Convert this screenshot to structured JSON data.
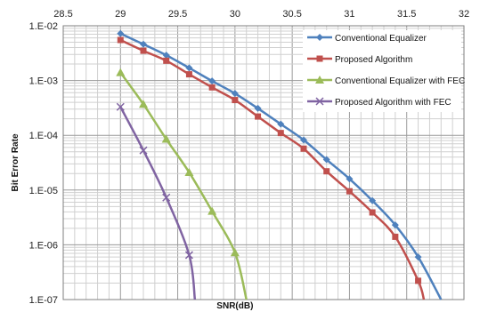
{
  "chart_data": {
    "type": "line",
    "title": "",
    "xlabel": "SNR(dB)",
    "ylabel": "Bit  Error Rate",
    "x_scale": "linear",
    "y_scale": "log",
    "xlim": [
      28.5,
      32
    ],
    "ylim": [
      1e-07,
      0.01
    ],
    "x_ticks": [
      "28.5",
      "29",
      "29.5",
      "30",
      "30.5",
      "31",
      "31.5",
      "32"
    ],
    "x_tick_values": [
      28.5,
      29,
      29.5,
      30,
      30.5,
      31,
      31.5,
      32
    ],
    "y_ticks": [
      "1.E-02",
      "1.E-03",
      "1.E-04",
      "1.E-05",
      "1.E-06",
      "1.E-07"
    ],
    "y_tick_values": [
      0.01,
      0.001,
      0.0001,
      1e-05,
      1e-06,
      1e-07
    ],
    "x_axis_position": "top",
    "grid": true,
    "legend_position": "top-right",
    "series": [
      {
        "name": "Conventional Equalizer",
        "color": "#4F81BD",
        "marker": "diamond",
        "x": [
          29,
          29.2,
          29.4,
          29.6,
          29.8,
          30,
          30.2,
          30.4,
          30.6,
          30.8,
          31,
          31.2,
          31.4,
          31.6,
          31.8
        ],
        "y": [
          0.0072,
          0.0046,
          0.0029,
          0.0017,
          0.00098,
          0.00058,
          0.00031,
          0.00016,
          8.2e-05,
          3.6e-05,
          1.6e-05,
          6.4e-06,
          2.3e-06,
          6e-07,
          1e-07
        ]
      },
      {
        "name": "Proposed Algorithm",
        "color": "#C0504D",
        "marker": "square",
        "x": [
          29,
          29.2,
          29.4,
          29.6,
          29.8,
          30,
          30.2,
          30.4,
          30.6,
          30.8,
          31,
          31.2,
          31.4,
          31.6,
          31.65
        ],
        "y": [
          0.0055,
          0.0035,
          0.0023,
          0.0013,
          0.00075,
          0.00044,
          0.00022,
          0.00011,
          5.7e-05,
          2.2e-05,
          9.5e-06,
          3.9e-06,
          1.4e-06,
          2.2e-07,
          1e-07
        ]
      },
      {
        "name": "Conventional Equalizer with FEC",
        "color": "#9BBB59",
        "marker": "triangle",
        "x": [
          29,
          29.2,
          29.4,
          29.6,
          29.8,
          30,
          30.1
        ],
        "y": [
          0.0014,
          0.00037,
          8.5e-05,
          2.1e-05,
          4.1e-06,
          7.2e-07,
          1e-07
        ]
      },
      {
        "name": "Proposed Algorithm with FEC",
        "color": "#8064A2",
        "marker": "x",
        "x": [
          29,
          29.2,
          29.4,
          29.6,
          29.65
        ],
        "y": [
          0.00033,
          5.3e-05,
          7.3e-06,
          6.5e-07,
          1e-07
        ]
      }
    ]
  }
}
